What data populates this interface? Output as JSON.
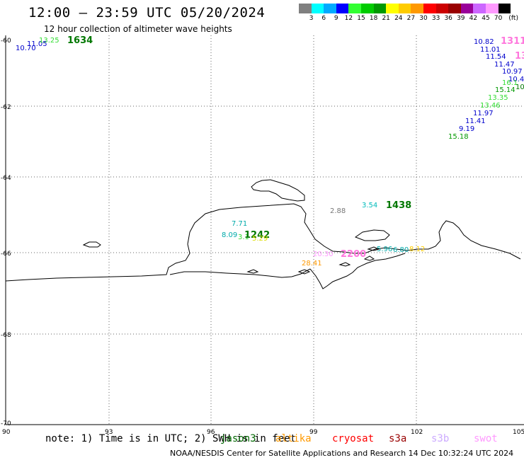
{
  "header": {
    "title": "12:00 — 23:59 UTC 05/20/2024",
    "subtitle": "12 hour collection of altimeter wave heights"
  },
  "colorbar": {
    "colors": [
      "#808080",
      "#00ffff",
      "#00aaff",
      "#0000ff",
      "#33ff33",
      "#00cc00",
      "#009900",
      "#ffff00",
      "#ffcc00",
      "#ff9900",
      "#ff0000",
      "#cc0000",
      "#990000",
      "#990099",
      "#cc66ff",
      "#ff99ff",
      "#000000"
    ],
    "labels": [
      "3",
      "6",
      "9",
      "12",
      "15",
      "18",
      "21",
      "24",
      "27",
      "30",
      "33",
      "36",
      "39",
      "42",
      "45",
      "70",
      "(ft)"
    ]
  },
  "axes": {
    "y_ticks": [
      "-60",
      "-62",
      "-64",
      "-66",
      "-68",
      "-70"
    ],
    "x_ticks": [
      "90",
      "93",
      "96",
      "99",
      "102",
      "105"
    ]
  },
  "observations": [
    {
      "text": "10.70",
      "color": "#0000cc"
    },
    {
      "text": "11.05",
      "color": "#0000cc"
    },
    {
      "text": "13.25",
      "color": "#33dd33"
    },
    {
      "text": "1634",
      "color": "#007700"
    },
    {
      "text": "10.82",
      "color": "#0000cc"
    },
    {
      "text": "1311",
      "color": "#ff77dd"
    },
    {
      "text": "11.01",
      "color": "#0000cc"
    },
    {
      "text": "13",
      "color": "#ff77dd"
    },
    {
      "text": "11.54",
      "color": "#0000cc"
    },
    {
      "text": "11.47",
      "color": "#0000cc"
    },
    {
      "text": "10.97",
      "color": "#0000cc"
    },
    {
      "text": "10.4",
      "color": "#0000cc"
    },
    {
      "text": "16.1",
      "color": "#33dd33"
    },
    {
      "text": "10",
      "color": "#007700"
    },
    {
      "text": "15.14",
      "color": "#009900"
    },
    {
      "text": "13.35",
      "color": "#33dd33"
    },
    {
      "text": "13.46",
      "color": "#33dd33"
    },
    {
      "text": "11.97",
      "color": "#0000cc"
    },
    {
      "text": "11.41",
      "color": "#0000cc"
    },
    {
      "text": "9.19",
      "color": "#0000cc"
    },
    {
      "text": "15.18",
      "color": "#009900"
    },
    {
      "text": "3.54",
      "color": "#00bbbb"
    },
    {
      "text": "1438",
      "color": "#007700"
    },
    {
      "text": "2.88",
      "color": "#777777"
    },
    {
      "text": "7.71",
      "color": "#00aaaa"
    },
    {
      "text": "8.09",
      "color": "#00aaaa"
    },
    {
      "text": "3.1",
      "color": "#33dd33"
    },
    {
      "text": "1242",
      "color": "#007700"
    },
    {
      "text": "5.29",
      "color": "#dddd00"
    },
    {
      "text": "20.30",
      "color": "#ff99ff"
    },
    {
      "text": "2200",
      "color": "#ff77dd"
    },
    {
      "text": "5.96",
      "color": "#00aaaa"
    },
    {
      "text": "6.80",
      "color": "#00aaaa"
    },
    {
      "text": "8.12",
      "color": "#ffcc00"
    },
    {
      "text": "28.41",
      "color": "#ff9900"
    }
  ],
  "footer": {
    "note": "note: 1) Time is in UTC; 2) SWH is in feet",
    "satellites": [
      {
        "name": "jason3",
        "color": "#006600"
      },
      {
        "name": "altika",
        "color": "#ff9900"
      },
      {
        "name": "cryosat",
        "color": "#ff0000"
      },
      {
        "name": "s3a",
        "color": "#990000"
      },
      {
        "name": "s3b",
        "color": "#ccaaff"
      },
      {
        "name": "swot",
        "color": "#ff99ff"
      }
    ],
    "credit": "NOAA/NESDIS Center for Satellite Applications and Research    14 Dec 10:32:24 UTC 2024"
  }
}
